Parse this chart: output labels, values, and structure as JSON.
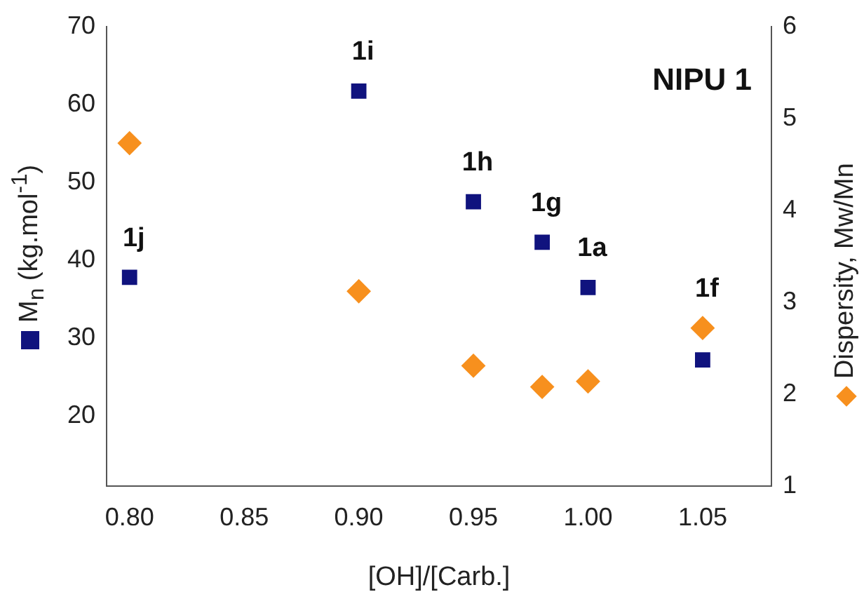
{
  "chart_data": {
    "type": "scatter",
    "title": "NIPU 1",
    "xlabel": "[OH]/[Carb.]",
    "ylabel": "M$_{n}$ (kg.mol$^{-1}$)",
    "y2label": "Dispersity, Mw/Mn",
    "x": [
      0.8,
      0.9,
      0.95,
      0.98,
      1.0,
      1.05
    ],
    "series": [
      {
        "color": "#10137e",
        "marker": "square",
        "values": [
          37.8,
          61.7,
          47.5,
          42.3,
          36.5,
          27.2
        ]
      },
      {
        "color": "#f7901e",
        "marker": "diamond",
        "axis": "y2",
        "values": [
          4.73,
          3.12,
          2.31,
          2.08,
          2.14,
          2.72
        ]
      }
    ],
    "xlim": [
      0.79,
      1.08
    ],
    "xticks": [
      {
        "value": 0.8,
        "label": "0.80"
      },
      0.85,
      {
        "value": 0.9,
        "label": "0.90"
      },
      0.95,
      {
        "value": 1.0,
        "label": "1.00"
      },
      1.05
    ],
    "ylim": [
      11,
      70
    ],
    "yticks": [
      20,
      30,
      40,
      50,
      60,
      70
    ],
    "y2lim": [
      1,
      6
    ],
    "y2ticks": [
      1,
      2,
      3,
      4,
      5,
      6
    ],
    "grid": false,
    "legend": false,
    "annotations": [
      {
        "text": "1j",
        "x": 0.8,
        "y": 37.8
      },
      {
        "text": "1i",
        "x": 0.9,
        "y": 61.7
      },
      {
        "text": "1h",
        "x": 0.95,
        "y": 47.5
      },
      {
        "text": "1g",
        "x": 0.98,
        "y": 42.3
      },
      {
        "text": "1a",
        "x": 1.0,
        "y": 36.5
      },
      {
        "text": "1f",
        "x": 1.05,
        "y": 27.2
      }
    ]
  }
}
